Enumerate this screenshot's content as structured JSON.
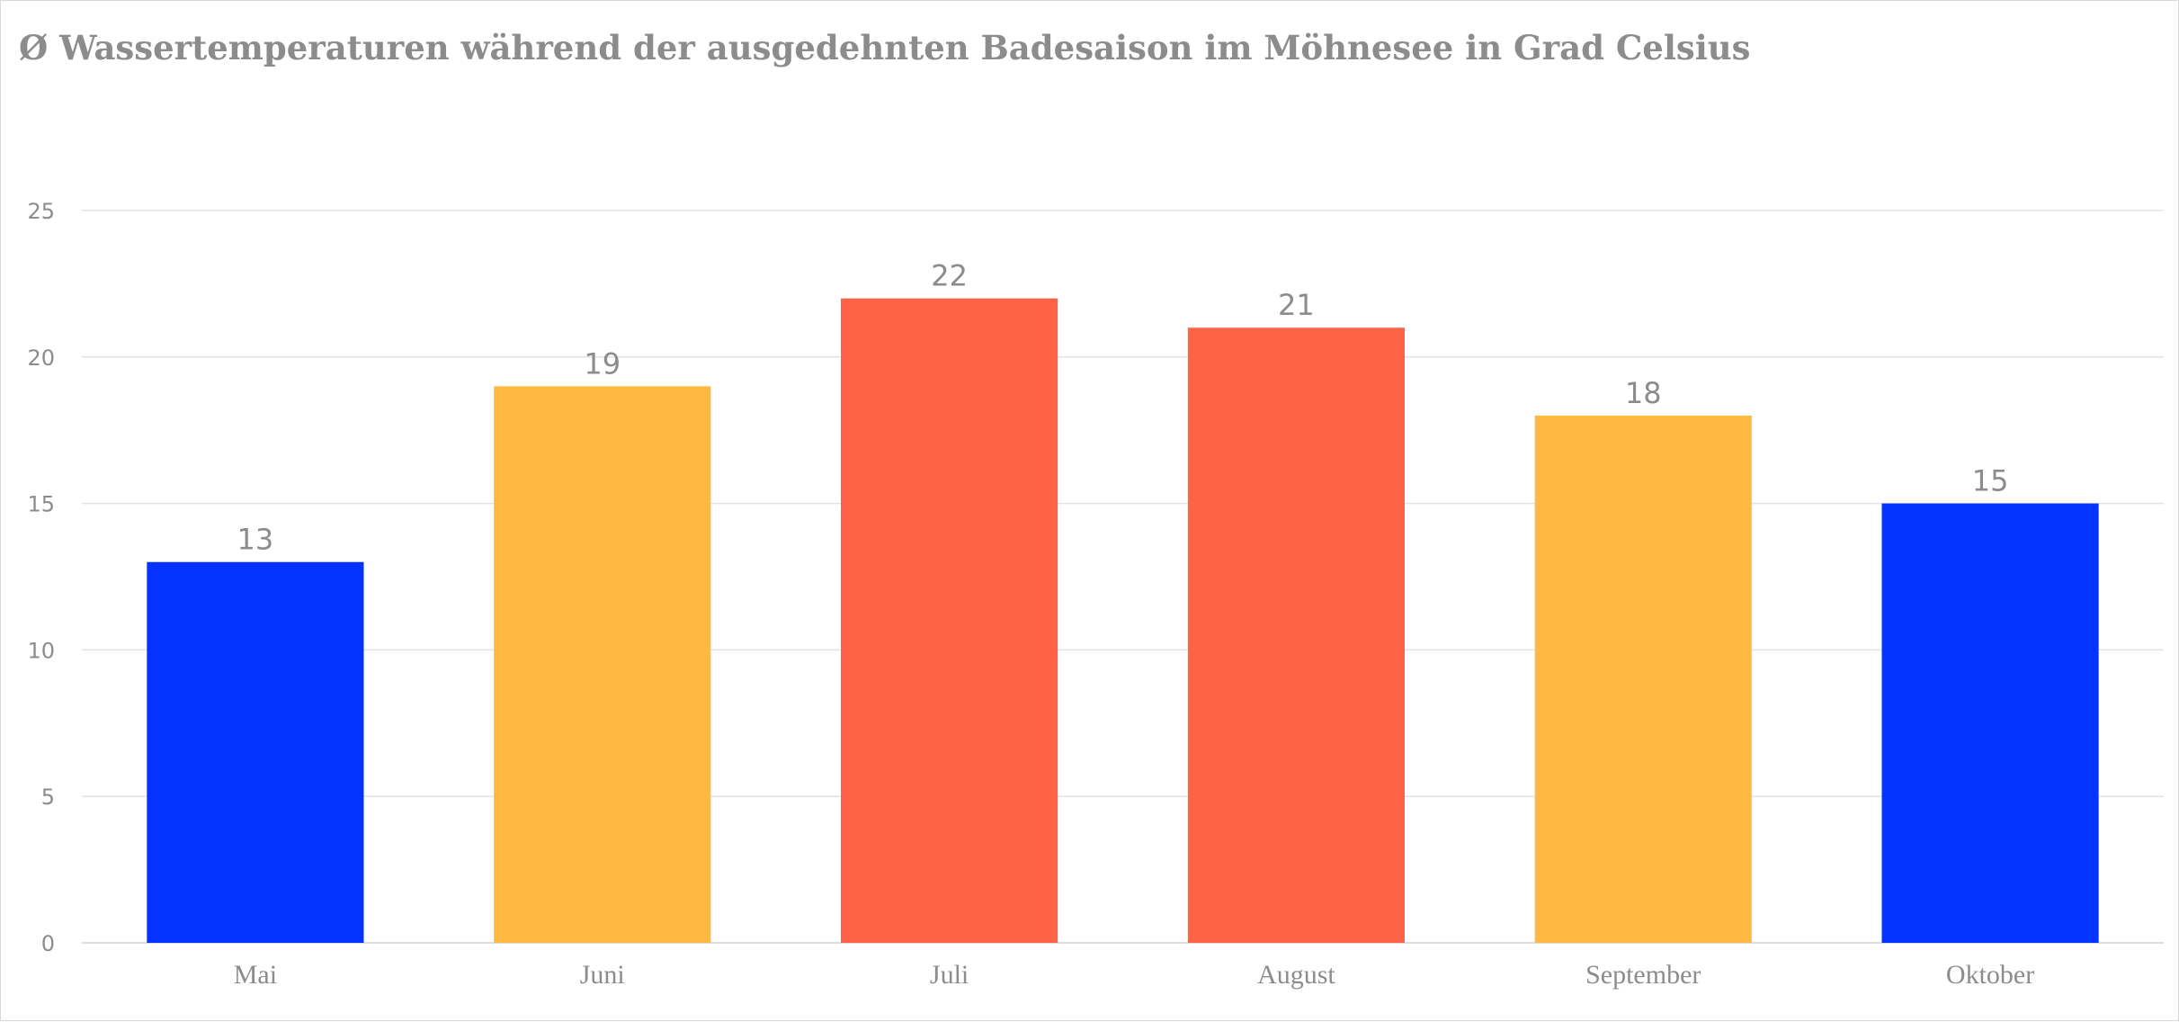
{
  "chart_data": {
    "type": "bar",
    "title": "Ø Wassertemperaturen während der ausgedehnten Badesaison im Möhnesee in Grad Celsius",
    "xlabel": "",
    "ylabel": "",
    "categories": [
      "Mai",
      "Juni",
      "Juli",
      "August",
      "September",
      "Oktober"
    ],
    "values": [
      13,
      19,
      22,
      21,
      18,
      15
    ],
    "data_labels": [
      "13",
      "19",
      "22",
      "21",
      "18",
      "15"
    ],
    "bar_colors": [
      "#0433ff",
      "#ffb941",
      "#ff6347",
      "#ff6347",
      "#ffb941",
      "#0433ff"
    ],
    "ylim": [
      0,
      25
    ],
    "yticks": [
      0,
      5,
      10,
      15,
      20,
      25
    ],
    "ytick_labels": [
      "0",
      "5",
      "10",
      "15",
      "20",
      "25"
    ],
    "grid": true,
    "legend": "none"
  }
}
